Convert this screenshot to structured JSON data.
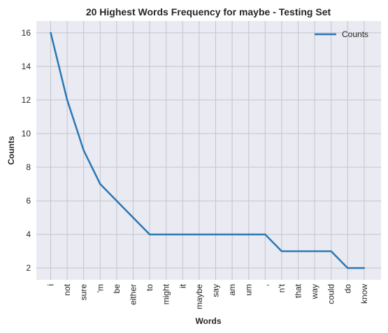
{
  "chart_data": {
    "type": "line",
    "title": "20 Highest Words Frequency for maybe - Testing Set",
    "xlabel": "Words",
    "ylabel": "Counts",
    "categories": [
      "i",
      "not",
      "sure",
      "'m",
      "be",
      "either",
      "to",
      "might",
      "it",
      "maybe",
      "say",
      "am",
      "um",
      ",",
      "n't",
      "that",
      "way",
      "could",
      "do",
      "know"
    ],
    "series": [
      {
        "name": "Counts",
        "values": [
          16,
          12,
          9,
          7,
          6,
          5,
          4,
          4,
          4,
          4,
          4,
          4,
          4,
          4,
          3,
          3,
          3,
          3,
          2,
          2
        ]
      }
    ],
    "ylim": [
      1.3,
      16.7
    ],
    "yticks": [
      2,
      4,
      6,
      8,
      10,
      12,
      14,
      16
    ],
    "grid": true,
    "legend": "top-right",
    "colors": {
      "background": "#eaeaf2",
      "grid": "#c4c4cc",
      "line": "#2a77b4",
      "text": "#262626"
    }
  }
}
